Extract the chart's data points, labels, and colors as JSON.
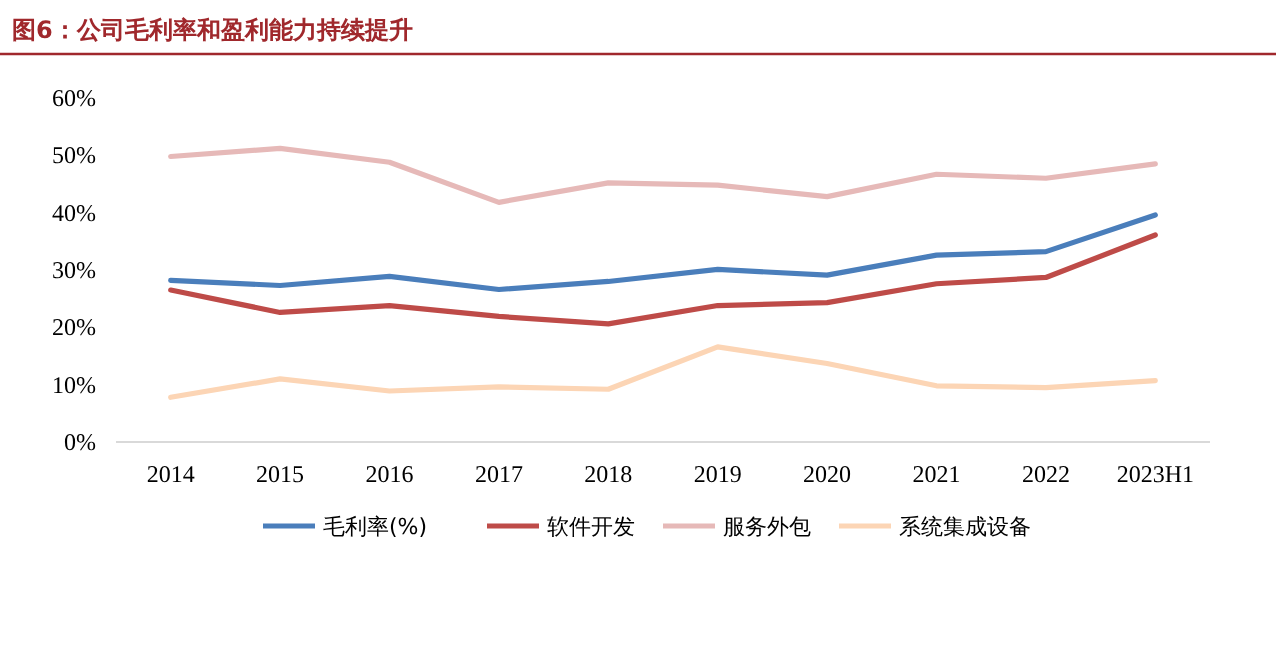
{
  "chart_data": {
    "type": "line",
    "title": "图6：公司毛利率和盈利能力持续提升",
    "categories": [
      "2014",
      "2015",
      "2016",
      "2017",
      "2018",
      "2019",
      "2020",
      "2021",
      "2022",
      "2023H1"
    ],
    "ylim": [
      0,
      60
    ],
    "yticks": [
      {
        "value": 0,
        "label": "0%"
      },
      {
        "value": 10,
        "label": "10%"
      },
      {
        "value": 20,
        "label": "20%"
      },
      {
        "value": 30,
        "label": "30%"
      },
      {
        "value": 40,
        "label": "40%"
      },
      {
        "value": 50,
        "label": "50%"
      },
      {
        "value": 60,
        "label": "60%"
      }
    ],
    "grid": false,
    "legend": "bottom",
    "marker": "none",
    "line_style": "solid",
    "series": [
      {
        "name": "毛利率(%)",
        "color": "#4a7ebb",
        "values": [
          28.2,
          27.3,
          28.9,
          26.6,
          28.0,
          30.1,
          29.1,
          32.6,
          33.2,
          39.6
        ]
      },
      {
        "name": "软件开发",
        "color": "#be4b48",
        "values": [
          26.5,
          22.6,
          23.8,
          21.9,
          20.6,
          23.8,
          24.3,
          27.6,
          28.7,
          36.1
        ]
      },
      {
        "name": "服务外包",
        "color": "#e6b9b8",
        "values": [
          49.8,
          51.2,
          48.8,
          41.8,
          45.2,
          44.8,
          42.8,
          46.7,
          46.0,
          48.5
        ]
      },
      {
        "name": "系统集成设备",
        "color": "#fcd5b5",
        "values": [
          7.8,
          11.0,
          8.9,
          9.6,
          9.2,
          16.6,
          13.7,
          9.8,
          9.5,
          10.7
        ]
      }
    ]
  }
}
